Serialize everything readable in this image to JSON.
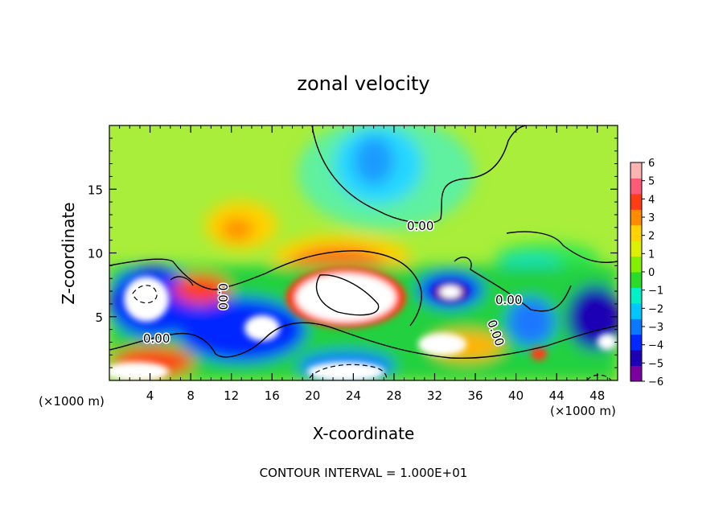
{
  "chart_data": {
    "type": "heatmap",
    "title": "zonal velocity",
    "xlabel": "X-coordinate",
    "ylabel": "Z-coordinate",
    "x_unit_left": "(×1000 m)",
    "x_unit_right": "(×1000 m)",
    "footer": "CONTOUR INTERVAL = 1.000E+01",
    "xlim": [
      0,
      50
    ],
    "ylim": [
      0,
      20
    ],
    "x_ticks": [
      4,
      8,
      12,
      16,
      20,
      24,
      28,
      32,
      36,
      40,
      44,
      48
    ],
    "y_ticks": [
      5,
      10,
      15
    ],
    "colorbar": {
      "min": -6,
      "max": 6,
      "ticks": [
        6,
        5,
        4,
        3,
        2,
        1,
        0,
        -1,
        -2,
        -3,
        -4,
        -5,
        -6
      ],
      "colors": [
        "#7a00a0",
        "#1e00b4",
        "#0028ff",
        "#0a78ff",
        "#00c8ff",
        "#00f0c8",
        "#28dc28",
        "#82f000",
        "#dcf000",
        "#ffd200",
        "#ff8c00",
        "#ff3c14",
        "#ff5a78",
        "#ffb4b4"
      ]
    },
    "contour_labels": [
      "0.00",
      "0.00",
      "0.00",
      "0.00",
      "0.00"
    ],
    "features": [
      {
        "x": 26,
        "z": 17.5,
        "value": -3
      },
      {
        "x": 22,
        "z": 7,
        "value": 7
      },
      {
        "x": 4,
        "z": 6.5,
        "value": 7
      },
      {
        "x": 15,
        "z": 4,
        "value": 7
      },
      {
        "x": 34,
        "z": 7,
        "value": -6
      },
      {
        "x": 15,
        "z": 12.5,
        "value": 3
      },
      {
        "x": 23,
        "z": 10.5,
        "value": 4
      },
      {
        "x": 12,
        "z": 3,
        "value": -5
      },
      {
        "x": 41,
        "z": 5,
        "value": -3
      },
      {
        "x": 47,
        "z": 6,
        "value": -4
      },
      {
        "x": 35,
        "z": 3,
        "value": 4
      }
    ]
  }
}
